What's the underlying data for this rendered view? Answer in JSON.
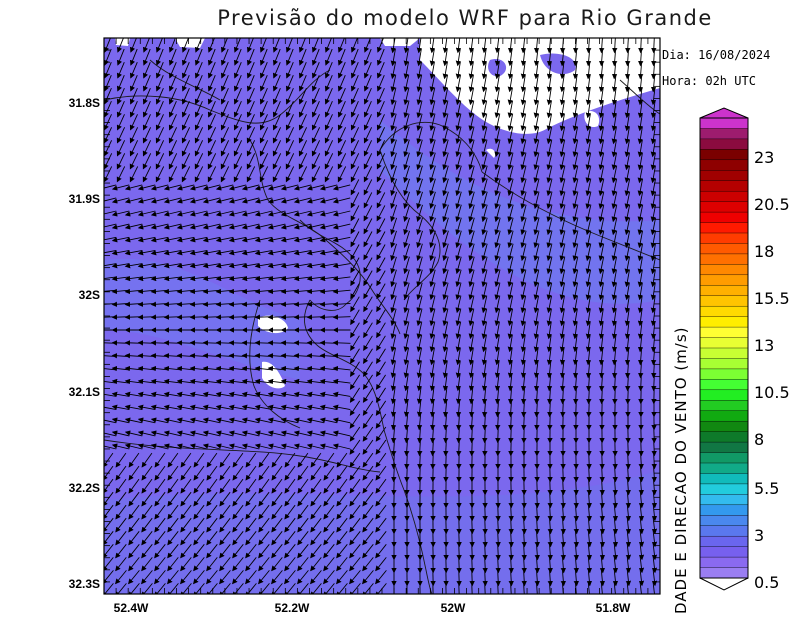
{
  "title": "Previsão do modelo WRF para Rio Grande",
  "info": {
    "date": "Dia: 16/08/2024",
    "hour": "Hora: 02h UTC"
  },
  "axes": {
    "lat_ticks": [
      "31.8S",
      "31.9S",
      "32S",
      "32.1S",
      "32.2S",
      "32.3S"
    ],
    "lon_ticks": [
      "52.4W",
      "52.2W",
      "52W",
      "51.8W"
    ]
  },
  "colorbar": {
    "title": "DADE E DIRECAO DO VENTO (m/s)",
    "labels": [
      "23",
      "20.5",
      "18",
      "15.5",
      "13",
      "10.5",
      "8",
      "5.5",
      "3",
      "0.5"
    ],
    "colors": [
      "#cc33cc",
      "#9d1c6e",
      "#8b0b3f",
      "#7a0000",
      "#8e0000",
      "#a00000",
      "#b40000",
      "#cc0000",
      "#dd0000",
      "#ee0000",
      "#ff1a00",
      "#ff3c00",
      "#ff5a00",
      "#ff7000",
      "#ff8800",
      "#ff9c00",
      "#ffb000",
      "#ffc400",
      "#ffda00",
      "#ffee00",
      "#ffff33",
      "#e8ff33",
      "#c8ff33",
      "#a8ff33",
      "#7cff33",
      "#44ff33",
      "#22ee22",
      "#22cc22",
      "#11aa11",
      "#118811",
      "#0e7a2a",
      "#117744",
      "#119966",
      "#11aa88",
      "#11bbbb",
      "#22ccdd",
      "#33bbee",
      "#3399ee",
      "#4a88ee",
      "#5a78ee",
      "#6a66ee",
      "#7760ee",
      "#8a6af0",
      "#9a7ef2"
    ],
    "bottom_value": 0.5,
    "top_value": 25
  },
  "colors": {
    "field": "#7b68ee",
    "field_light": "#6f7ef0",
    "arrow": "#000000",
    "coast": "#1a1a1a"
  },
  "wind_field": {
    "dominant_direction": "from north/northeast",
    "speed_range_ms": [
      0.5,
      3
    ]
  }
}
